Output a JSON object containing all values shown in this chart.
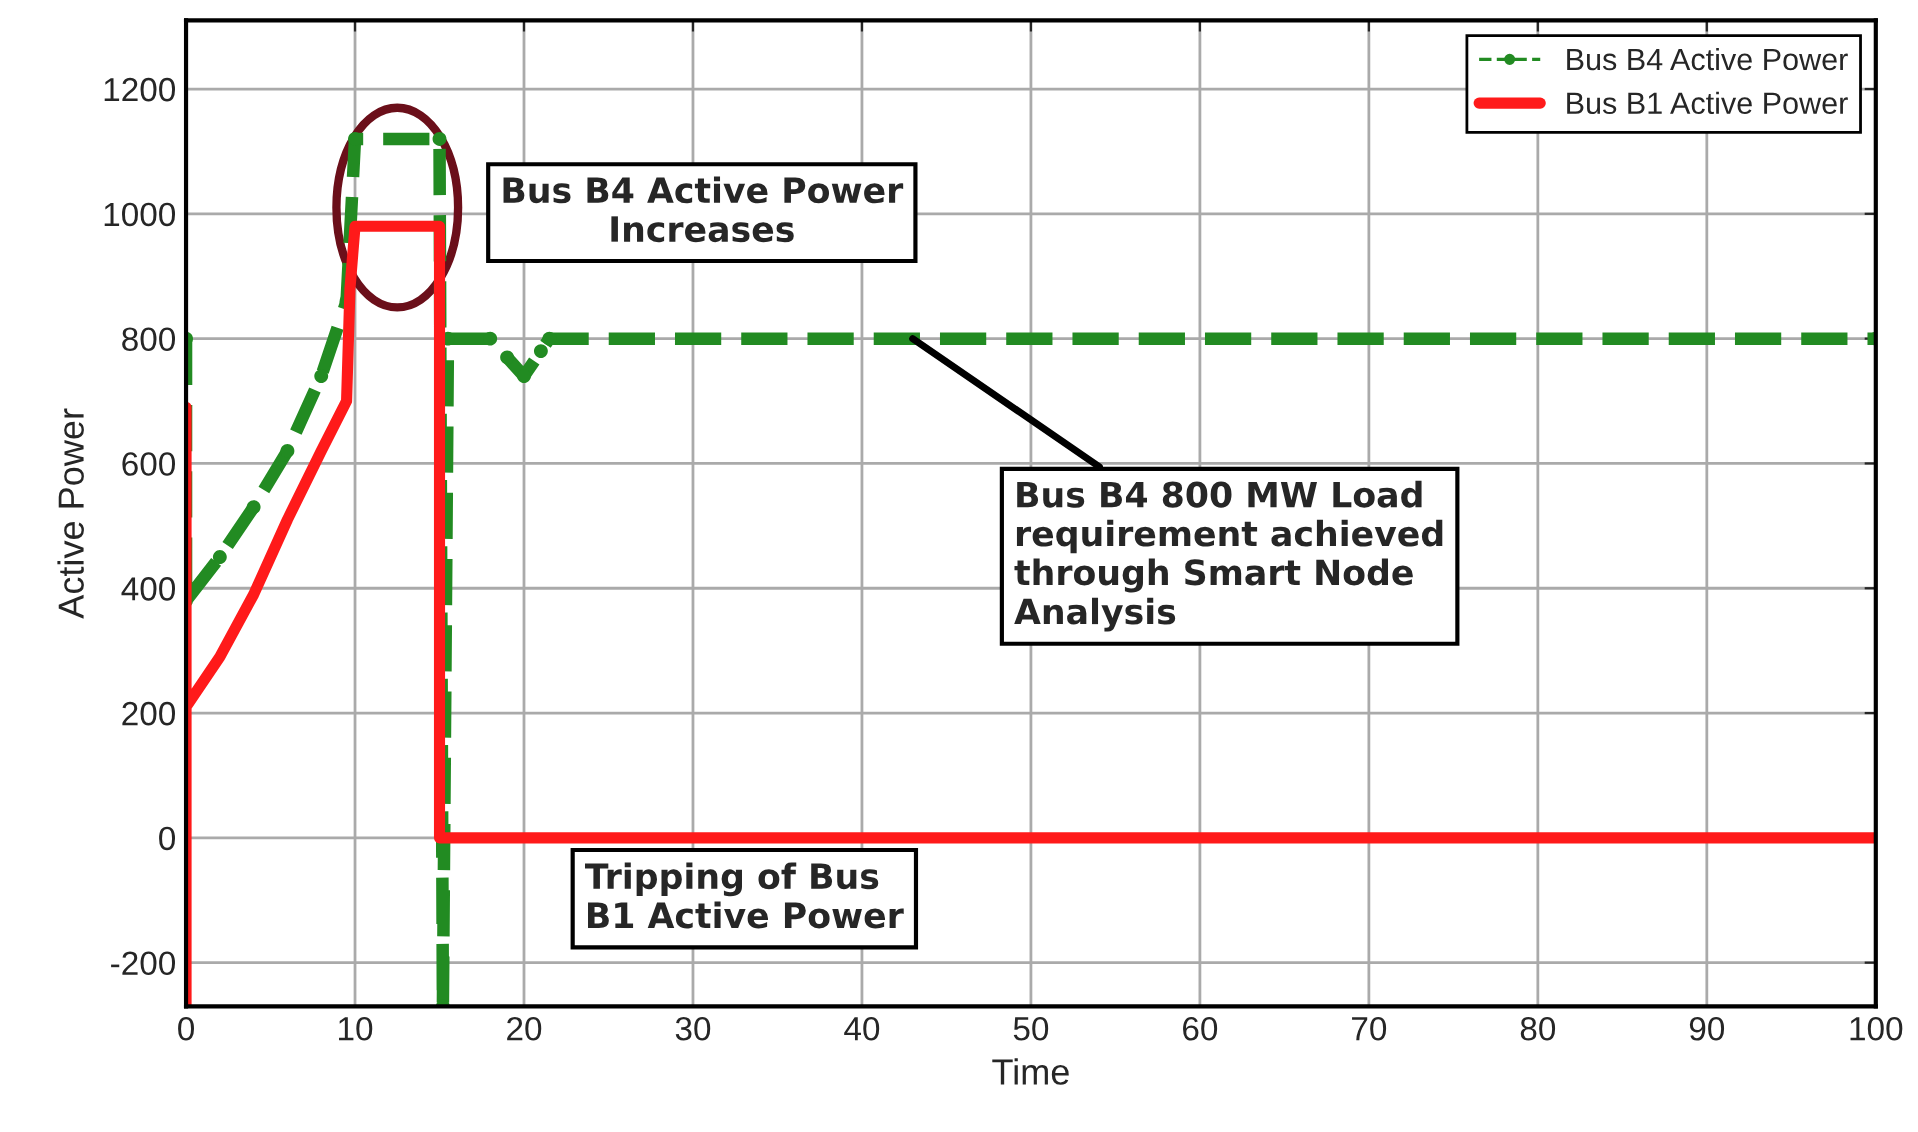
{
  "chart_data": {
    "type": "line",
    "xlabel": "Time",
    "ylabel": "Active Power",
    "xlim": [
      0,
      100
    ],
    "xticks": [
      0,
      10,
      20,
      30,
      40,
      50,
      60,
      70,
      80,
      90,
      100
    ],
    "ylim": [
      -270,
      1310
    ],
    "yticks": [
      -200,
      0,
      200,
      400,
      600,
      800,
      1000,
      1200
    ],
    "grid": true,
    "legend": "top right",
    "series": [
      {
        "name": "Bus B4 Active Power",
        "color": "#228b22",
        "line_style": "dashed",
        "marker": "circle",
        "x": [
          0,
          0,
          2,
          4,
          6,
          8,
          9.5,
          10,
          15,
          15.2,
          15.5,
          18,
          19,
          20,
          21,
          21.5,
          100
        ],
        "values": [
          800,
          380,
          450,
          530,
          620,
          740,
          860,
          1120,
          1120,
          -270,
          800,
          800,
          770,
          740,
          780,
          800,
          800
        ]
      },
      {
        "name": "Bus B1 Active Power",
        "color": "#ff1a1a",
        "line_style": "solid",
        "marker": "none",
        "x": [
          0,
          0,
          0,
          2,
          4,
          6,
          8,
          9.5,
          9.7,
          10,
          15,
          15,
          100
        ],
        "values": [
          -270,
          690,
          210,
          290,
          390,
          510,
          620,
          700,
          880,
          980,
          980,
          0,
          0
        ]
      }
    ],
    "annotations": [
      "Bus B4 Active Power\nIncreases",
      {
        "text": "Bus B4 800 MW Load\nrequirement achieved\nthrough Smart Node\nAnalysis",
        "x": 43,
        "y": 800
      },
      "Tripping of Bus\nB1 Active Power"
    ]
  }
}
